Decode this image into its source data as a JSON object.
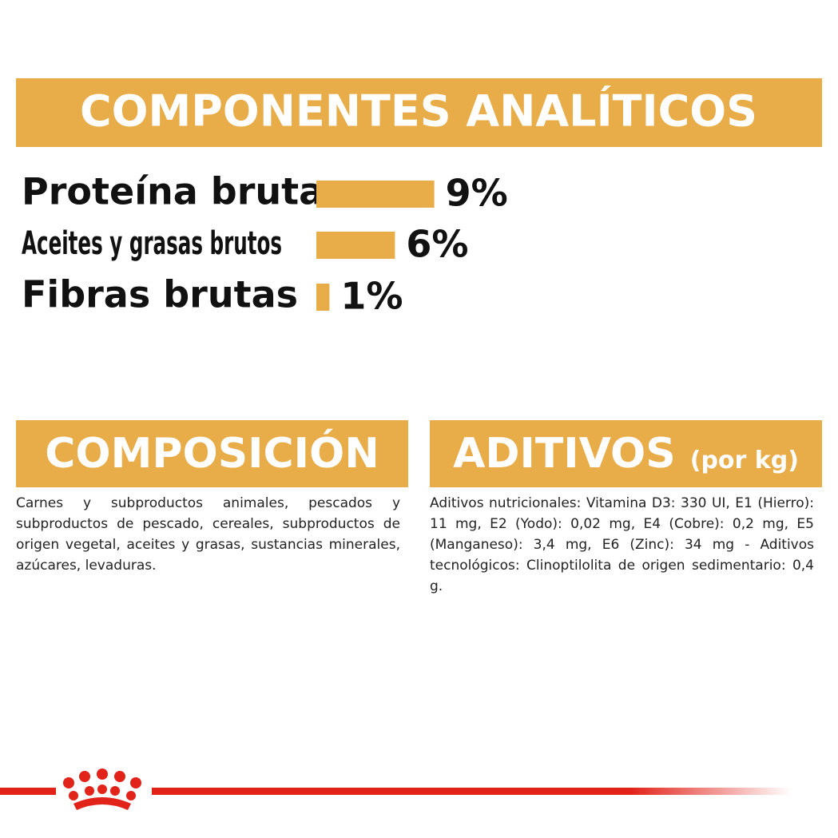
{
  "chart_data": {
    "type": "bar",
    "orientation": "horizontal",
    "title": "COMPONENTES ANALÍTICOS",
    "categories": [
      "Proteína bruta",
      "Aceites y grasas brutos",
      "Fibras brutas"
    ],
    "values": [
      9,
      6,
      1
    ],
    "value_labels": [
      "9%",
      "6%",
      "1%"
    ],
    "color": "#e8ac48"
  },
  "composicion": {
    "title": "COMPOSICIÓN",
    "text": "Carnes y subproductos animales, pescados y subproductos de pescado, cereales, subproductos de origen vegetal, aceites y grasas, sustancias minerales, azúcares, levaduras."
  },
  "aditivos": {
    "title": "ADITIVOS",
    "subtitle": "(por kg)",
    "text": "Aditivos nutricionales: Vitamina D3: 330 UI, E1 (Hierro): 11 mg, E2 (Yodo): 0,02 mg, E4 (Cobre): 0,2 mg, E5 (Manganeso): 3,4 mg, E6 (Zinc): 34 mg - Aditivos tecnológicos: Clinoptilolita de origen sedimentario: 0,4 g."
  }
}
